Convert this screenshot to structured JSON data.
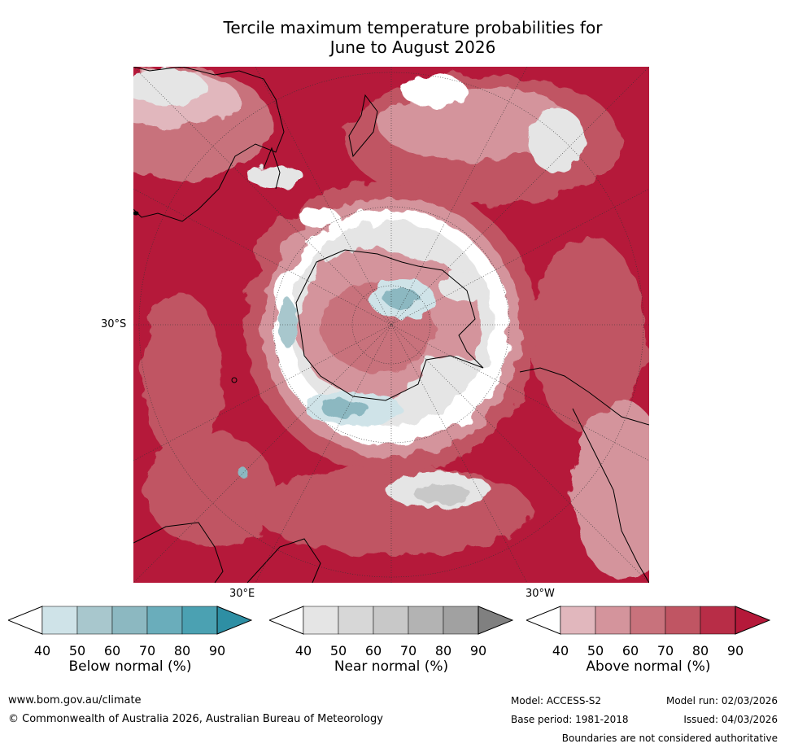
{
  "title_line1": "Tercile maximum temperature probabilities for",
  "title_line2": "June to August 2026",
  "map_labels": {
    "lat": "30°S",
    "lon_east": "30°E",
    "lon_west": "30°W"
  },
  "colors": {
    "ocean_hot": "#b5193a",
    "above": [
      "#ffffff",
      "#e1b7bd",
      "#d4949c",
      "#c8727c",
      "#c05563",
      "#b82d47",
      "#b5193a"
    ],
    "near": [
      "#ffffff",
      "#e5e5e5",
      "#d7d7d7",
      "#c8c8c8",
      "#b3b3b3",
      "#a1a1a1",
      "#808080"
    ],
    "below": [
      "#ffffff",
      "#cfe3e8",
      "#a8c7cd",
      "#8cb8c1",
      "#6aadbb",
      "#4ba1b2",
      "#2e8fa4"
    ]
  },
  "legends": [
    {
      "name": "Below normal (%)",
      "ticks": [
        "40",
        "50",
        "60",
        "70",
        "80",
        "90"
      ]
    },
    {
      "name": "Near normal (%)",
      "ticks": [
        "40",
        "50",
        "60",
        "70",
        "80",
        "90"
      ]
    },
    {
      "name": "Above normal (%)",
      "ticks": [
        "40",
        "50",
        "60",
        "70",
        "80",
        "90"
      ]
    }
  ],
  "footer": {
    "website": "www.bom.gov.au/climate",
    "copyright": "© Commonwealth of Australia 2026, Australian Bureau of Meteorology",
    "model": "Model: ACCESS-S2",
    "base_period": "Base period: 1981-2018",
    "model_run": "Model run: 02/03/2026",
    "issued": "Issued: 04/03/2026",
    "boundaries": "Boundaries are not considered authoritative"
  }
}
